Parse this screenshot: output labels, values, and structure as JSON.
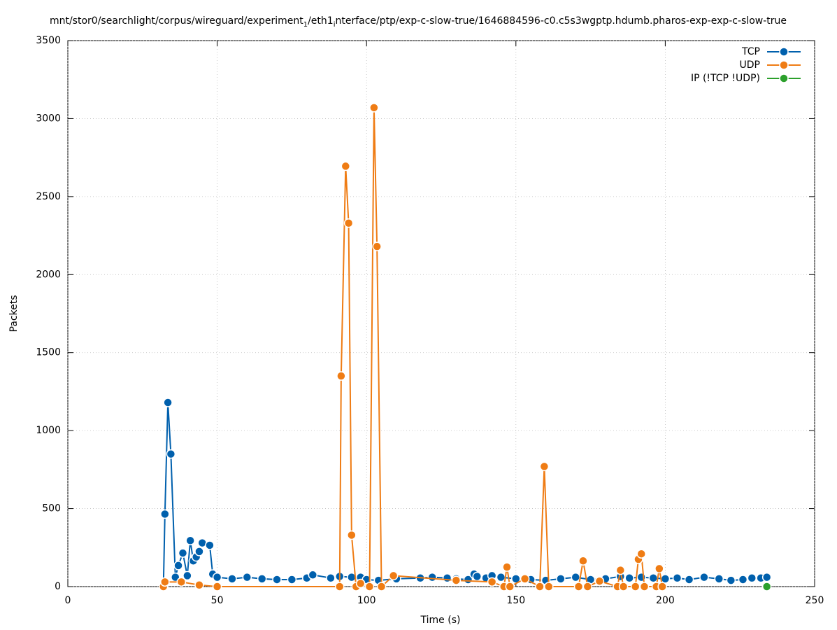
{
  "chart_data": {
    "type": "line",
    "title": [
      "mnt/stor0/searchlight/corpus/wireguard/experiment",
      "1",
      "/eth1",
      "i",
      "nterface/ptp/exp-c-slow-true/1646884596-c0.c5s3wgptp.hdumb.pharos-exp-exp-c-slow-true"
    ],
    "xlabel": "Time (s)",
    "ylabel": "Packets",
    "xlim": [
      0,
      250
    ],
    "ylim": [
      0,
      3500
    ],
    "xticks": [
      0,
      50,
      100,
      150,
      200,
      250
    ],
    "yticks": [
      0,
      500,
      1000,
      1500,
      2000,
      2500,
      3000,
      3500
    ],
    "grid": true,
    "legend": "upper-right",
    "series": [
      {
        "name": "TCP",
        "color": "#0060ad",
        "x": [
          32,
          32.5,
          33.5,
          34.5,
          36,
          37,
          38.5,
          40,
          41,
          42,
          43,
          44,
          45,
          47.5,
          48.5,
          50,
          55,
          60,
          65,
          70,
          75,
          80,
          82,
          88,
          91,
          95,
          98,
          100,
          104,
          110,
          118,
          122,
          127,
          130,
          134,
          136,
          137,
          140,
          142,
          145,
          150,
          155,
          160,
          165,
          170,
          175,
          180,
          185,
          188,
          192,
          196,
          200,
          204,
          208,
          213,
          218,
          222,
          226,
          229,
          232,
          234
        ],
        "values": [
          0,
          465,
          1180,
          850,
          60,
          135,
          215,
          70,
          295,
          165,
          190,
          225,
          280,
          265,
          80,
          60,
          50,
          60,
          50,
          45,
          45,
          55,
          75,
          55,
          65,
          60,
          60,
          45,
          40,
          50,
          55,
          60,
          55,
          50,
          45,
          80,
          65,
          55,
          70,
          60,
          50,
          45,
          40,
          50,
          60,
          45,
          50,
          65,
          55,
          60,
          55,
          50,
          55,
          45,
          60,
          50,
          40,
          45,
          55,
          55,
          60
        ]
      },
      {
        "name": "UDP",
        "color": "#ef7c14",
        "x": [
          32,
          32.5,
          38,
          44,
          50,
          91,
          91.5,
          93,
          94,
          95,
          96.5,
          98,
          101,
          102.5,
          103.5,
          105,
          109,
          130,
          142,
          146,
          147,
          148,
          153,
          158,
          159.5,
          161,
          171,
          172.5,
          174,
          178,
          184,
          185,
          186,
          190,
          191,
          192,
          193,
          197,
          198,
          199
        ],
        "values": [
          0,
          30,
          30,
          10,
          0,
          0,
          1350,
          2695,
          2330,
          330,
          0,
          20,
          0,
          3070,
          2180,
          0,
          70,
          40,
          30,
          0,
          125,
          0,
          50,
          0,
          770,
          0,
          0,
          165,
          0,
          35,
          0,
          105,
          0,
          0,
          175,
          210,
          0,
          0,
          115,
          0
        ]
      },
      {
        "name": "IP (!TCP  !UDP)",
        "color": "#2ca02c",
        "x": [
          234
        ],
        "values": [
          0
        ]
      }
    ]
  }
}
